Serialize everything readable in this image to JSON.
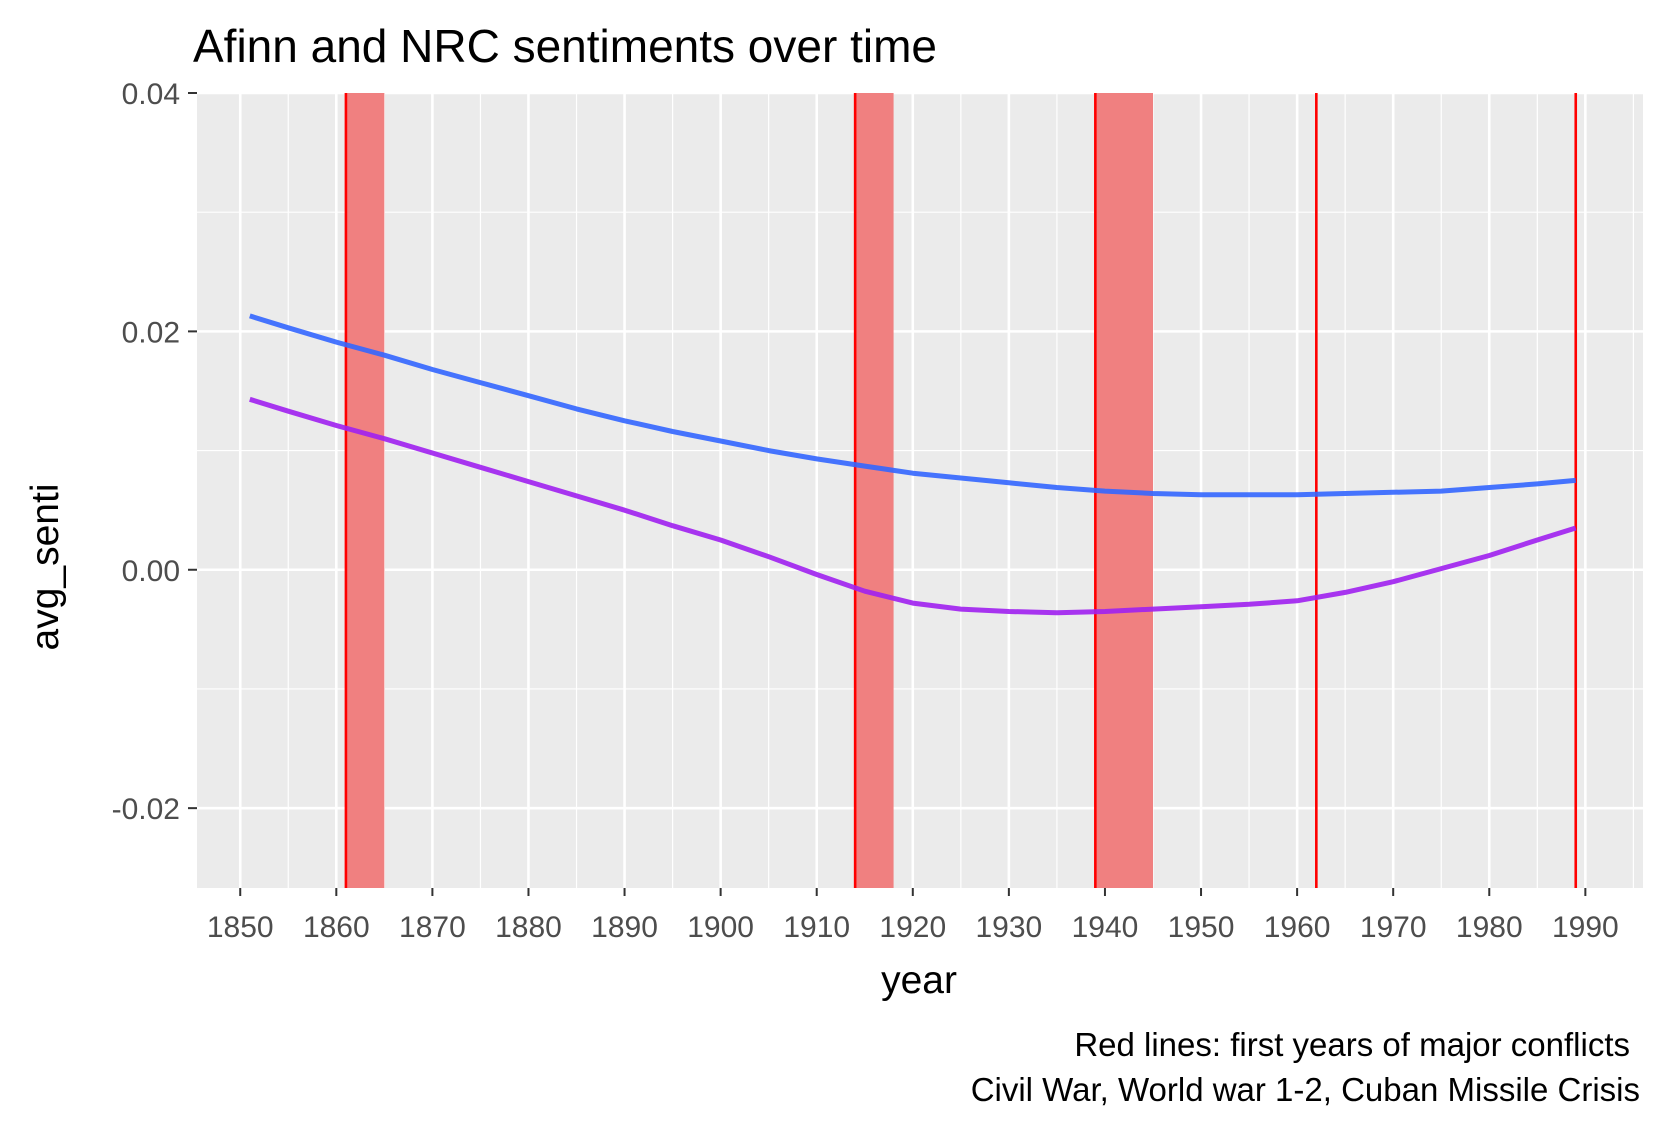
{
  "chart_data": {
    "type": "line",
    "title": "Afinn and NRC sentiments over time",
    "xlabel": "year",
    "ylabel": "avg_senti",
    "caption_lines": [
      "Red lines: first years of major conflicts",
      "Civil War, World war 1-2, Cuban Missile Crisis"
    ],
    "xlim": [
      1845.5,
      1996
    ],
    "ylim": [
      -0.0267,
      0.04
    ],
    "x_ticks": [
      "1850",
      "1860",
      "1870",
      "1880",
      "1890",
      "1900",
      "1910",
      "1920",
      "1930",
      "1940",
      "1950",
      "1960",
      "1970",
      "1980",
      "1990"
    ],
    "x_tick_values": [
      1850,
      1860,
      1870,
      1880,
      1890,
      1900,
      1910,
      1920,
      1930,
      1940,
      1950,
      1960,
      1970,
      1980,
      1990
    ],
    "x_minor_values": [
      1855,
      1865,
      1875,
      1885,
      1895,
      1905,
      1915,
      1925,
      1935,
      1945,
      1955,
      1965,
      1975,
      1985,
      1995
    ],
    "y_ticks": [
      "0.04",
      "0.02",
      "0.00",
      "-0.02"
    ],
    "y_tick_values": [
      0.04,
      0.02,
      0.0,
      -0.02
    ],
    "y_minor_values": [
      0.03,
      0.01,
      -0.01
    ],
    "grid": true,
    "series": [
      {
        "color": "#3366ff",
        "x": [
          1851,
          1855,
          1860,
          1865,
          1870,
          1875,
          1880,
          1885,
          1890,
          1895,
          1900,
          1905,
          1910,
          1915,
          1920,
          1925,
          1930,
          1935,
          1940,
          1945,
          1950,
          1955,
          1960,
          1965,
          1970,
          1975,
          1980,
          1985,
          1989
        ],
        "y": [
          0.0213,
          0.0203,
          0.0191,
          0.018,
          0.0168,
          0.0157,
          0.0146,
          0.0135,
          0.0125,
          0.0116,
          0.0108,
          0.01,
          0.0093,
          0.0087,
          0.0081,
          0.0077,
          0.0073,
          0.0069,
          0.0066,
          0.0064,
          0.0063,
          0.0063,
          0.0063,
          0.0064,
          0.0065,
          0.0066,
          0.0069,
          0.0072,
          0.0075
        ]
      },
      {
        "color": "#a020f0",
        "x": [
          1851,
          1855,
          1860,
          1865,
          1870,
          1875,
          1880,
          1885,
          1890,
          1895,
          1900,
          1905,
          1910,
          1915,
          1920,
          1925,
          1930,
          1935,
          1940,
          1945,
          1950,
          1955,
          1960,
          1965,
          1970,
          1975,
          1980,
          1985,
          1989
        ],
        "y": [
          0.0143,
          0.0133,
          0.0121,
          0.011,
          0.0098,
          0.0086,
          0.0074,
          0.0062,
          0.005,
          0.0037,
          0.0025,
          0.0011,
          -0.0004,
          -0.0018,
          -0.0028,
          -0.0033,
          -0.0035,
          -0.0036,
          -0.0035,
          -0.0033,
          -0.0031,
          -0.0029,
          -0.0026,
          -0.0019,
          -0.001,
          0.0001,
          0.0012,
          0.0025,
          0.0035
        ]
      }
    ],
    "conflict_bands": [
      {
        "start": 1861,
        "end": 1865
      },
      {
        "start": 1914,
        "end": 1918
      },
      {
        "start": 1939,
        "end": 1945
      }
    ],
    "conflict_lines": [
      1861,
      1914,
      1939,
      1962,
      1989
    ],
    "colors": {
      "panel_bg": "#ebebeb",
      "grid": "#ffffff",
      "band_fill": "#f08080",
      "conflict_line": "#ff0000"
    }
  }
}
